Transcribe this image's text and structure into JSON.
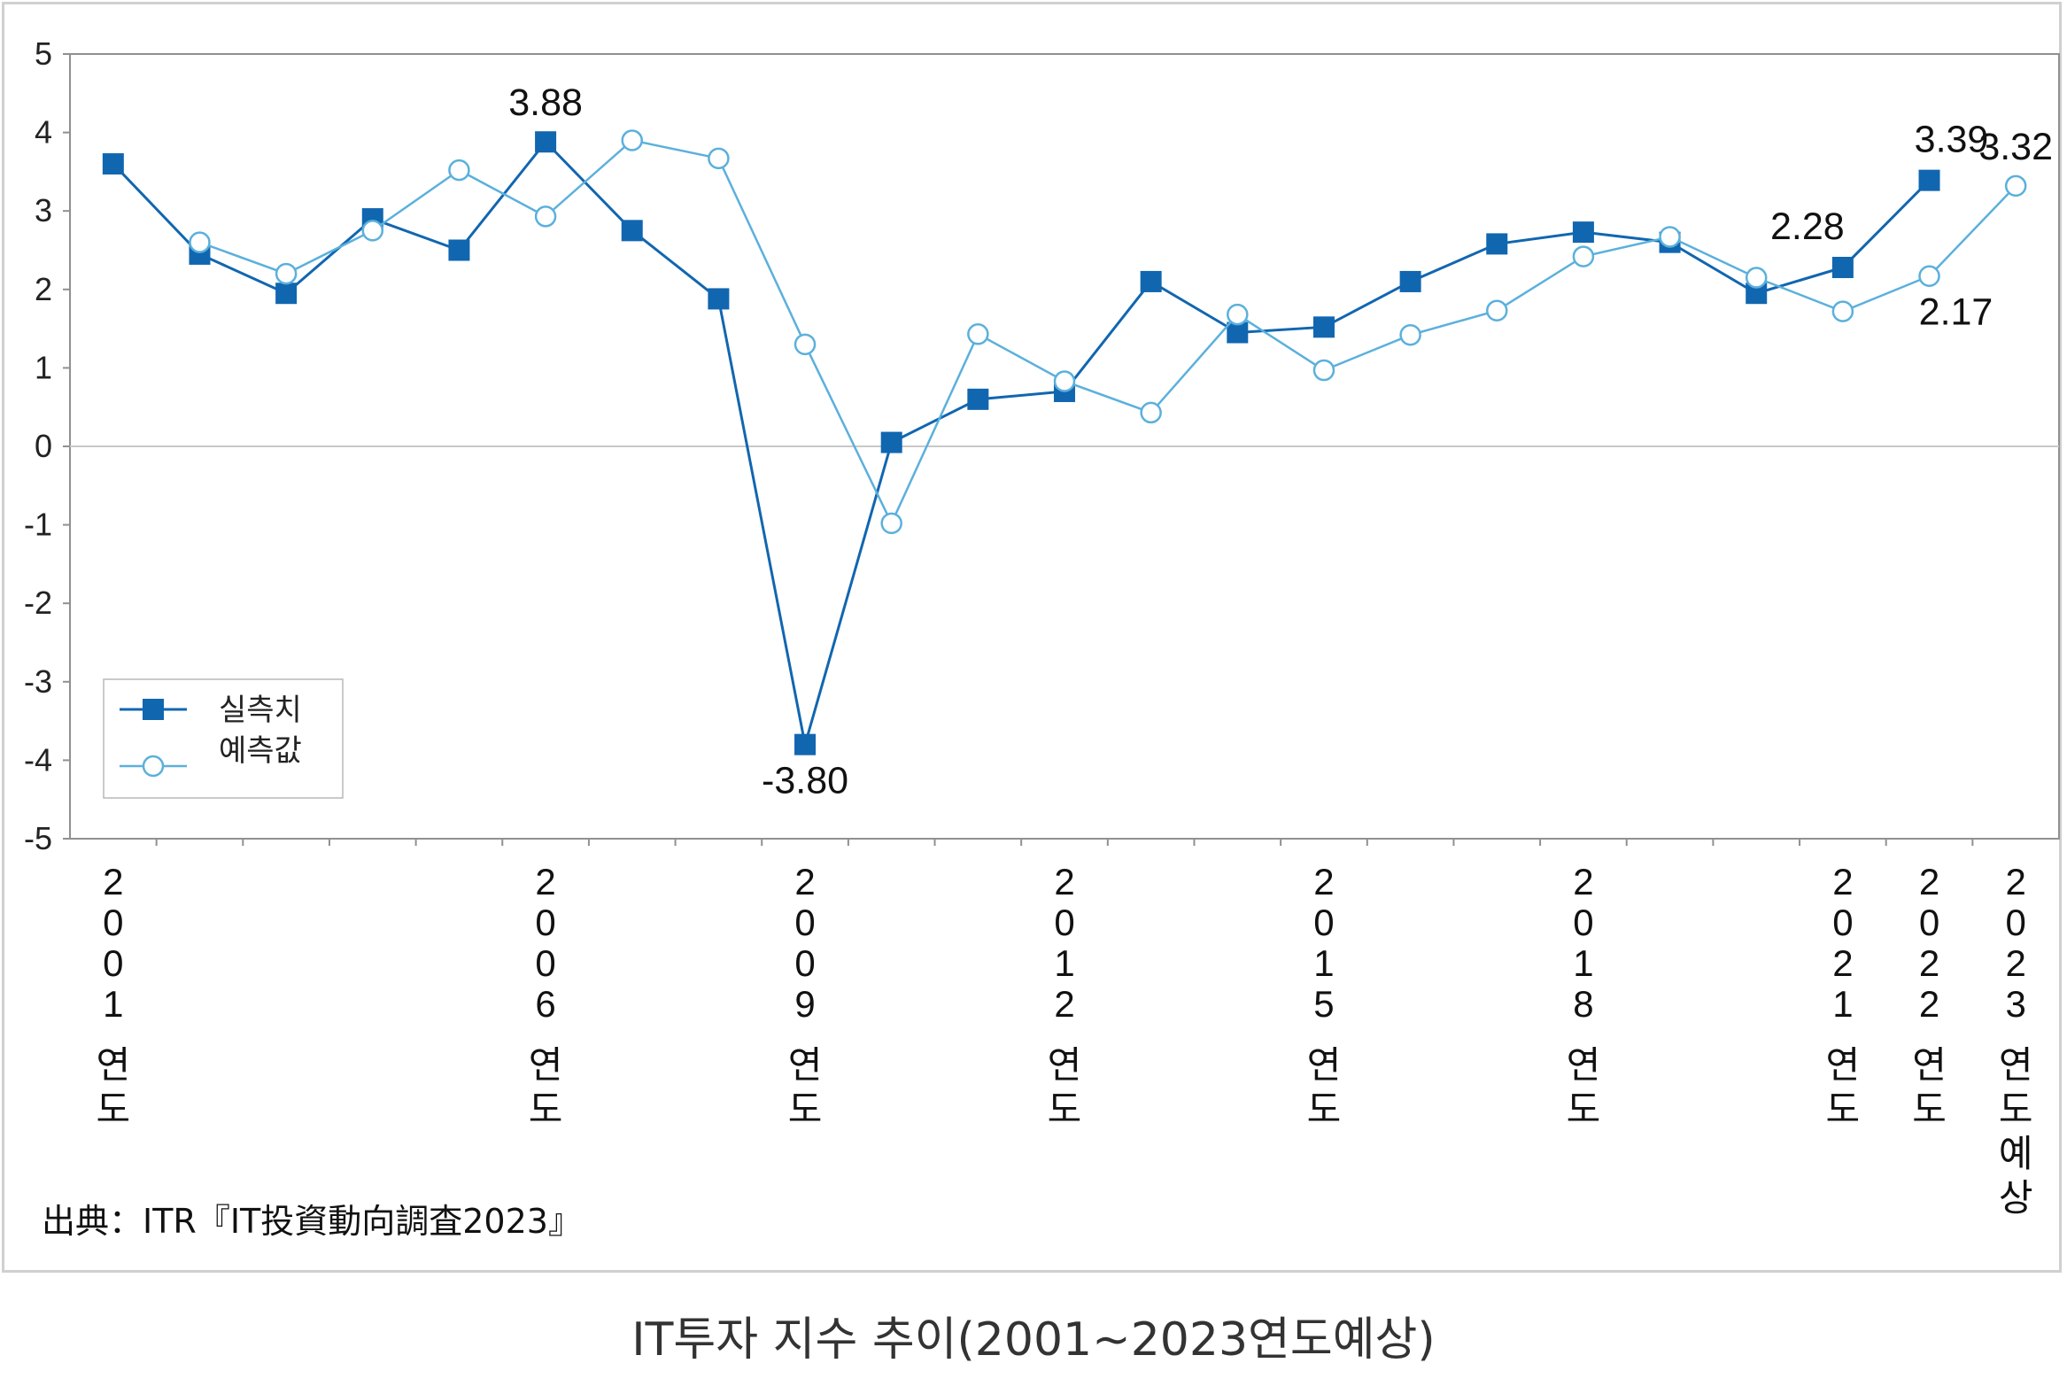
{
  "caption": "IT투자 지수 추이(2001~2023연도예상)",
  "source": "出典：ITR『IT投資動向調査2023』",
  "colors": {
    "actual": "#1166b0",
    "forecast": "#5bb0dc",
    "grid": "#c8c8c8",
    "axis": "#909090"
  },
  "chart_data": {
    "type": "line",
    "ylim": [
      -5,
      5
    ],
    "yticks": [
      5,
      4,
      3,
      2,
      1,
      0,
      -1,
      -2,
      -3,
      -4,
      -5
    ],
    "grid": "horizontal line at 0",
    "legend_position": "bottom-left",
    "x": [
      2001,
      2002,
      2003,
      2004,
      2005,
      2006,
      2007,
      2008,
      2009,
      2010,
      2011,
      2012,
      2013,
      2014,
      2015,
      2016,
      2017,
      2018,
      2019,
      2020,
      2021,
      2022,
      2023
    ],
    "x_tick_labels": [
      {
        "index": 0,
        "digits": [
          "2",
          "0",
          "0",
          "1"
        ],
        "suffix": [
          "연",
          "도"
        ]
      },
      {
        "index": 5,
        "digits": [
          "2",
          "0",
          "0",
          "6"
        ],
        "suffix": [
          "연",
          "도"
        ]
      },
      {
        "index": 8,
        "digits": [
          "2",
          "0",
          "0",
          "9"
        ],
        "suffix": [
          "연",
          "도"
        ]
      },
      {
        "index": 11,
        "digits": [
          "2",
          "0",
          "1",
          "2"
        ],
        "suffix": [
          "연",
          "도"
        ]
      },
      {
        "index": 14,
        "digits": [
          "2",
          "0",
          "1",
          "5"
        ],
        "suffix": [
          "연",
          "도"
        ]
      },
      {
        "index": 17,
        "digits": [
          "2",
          "0",
          "1",
          "8"
        ],
        "suffix": [
          "연",
          "도"
        ]
      },
      {
        "index": 20,
        "digits": [
          "2",
          "0",
          "2",
          "1"
        ],
        "suffix": [
          "연",
          "도"
        ]
      },
      {
        "index": 21,
        "digits": [
          "2",
          "0",
          "2",
          "2"
        ],
        "suffix": [
          "연",
          "도"
        ]
      },
      {
        "index": 22,
        "digits": [
          "2",
          "0",
          "2",
          "3"
        ],
        "suffix": [
          "연",
          "도",
          "예",
          "상"
        ]
      }
    ],
    "series": [
      {
        "name": "실측치",
        "marker": "filled-square",
        "values": [
          3.6,
          2.45,
          1.95,
          2.9,
          2.5,
          3.88,
          2.75,
          1.88,
          -3.8,
          0.05,
          0.6,
          0.7,
          2.1,
          1.45,
          1.52,
          2.1,
          2.58,
          2.73,
          2.6,
          1.95,
          2.28,
          3.39,
          null
        ]
      },
      {
        "name": "예측값",
        "marker": "hollow-circle",
        "values": [
          null,
          2.6,
          2.2,
          2.75,
          3.52,
          2.93,
          3.9,
          3.67,
          1.3,
          -0.98,
          1.43,
          0.83,
          0.43,
          1.68,
          0.97,
          1.42,
          1.73,
          2.42,
          2.67,
          2.15,
          1.72,
          2.17,
          3.32
        ]
      }
    ],
    "data_labels": [
      {
        "series": 0,
        "index": 5,
        "text": "3.88",
        "position": "above"
      },
      {
        "series": 0,
        "index": 8,
        "text": "-3.80",
        "position": "below"
      },
      {
        "series": 0,
        "index": 20,
        "text": "2.28",
        "position": "above-left"
      },
      {
        "series": 0,
        "index": 21,
        "text": "3.39",
        "position": "above-right"
      },
      {
        "series": 1,
        "index": 21,
        "text": "2.17",
        "position": "below-right"
      },
      {
        "series": 1,
        "index": 22,
        "text": "3.32",
        "position": "above"
      }
    ]
  }
}
